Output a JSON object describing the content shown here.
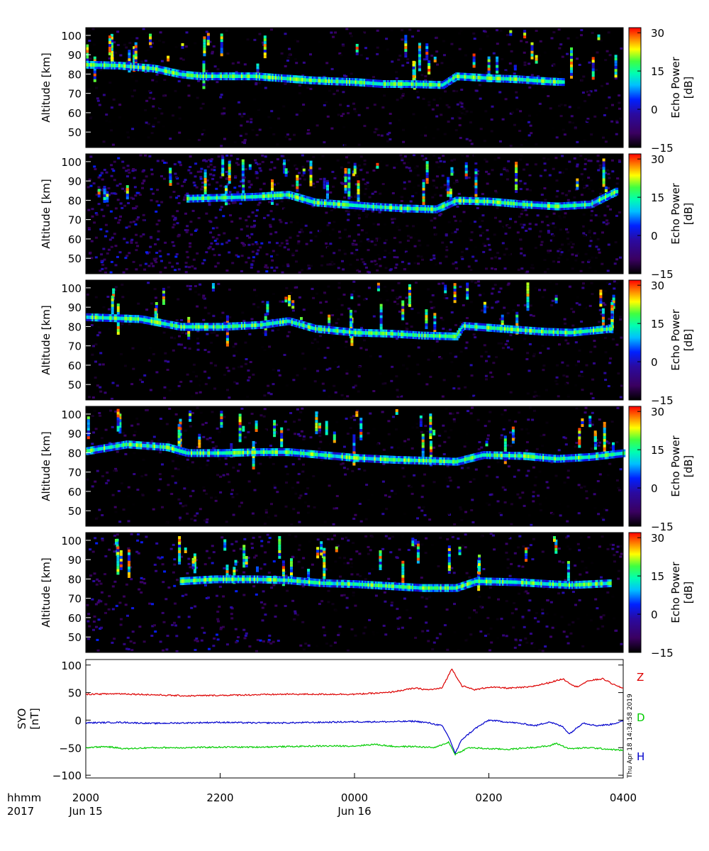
{
  "chart_data": [
    {
      "type": "heatmap",
      "panel": 1,
      "ylabel": "Altitude [km]",
      "ylim": [
        42,
        104
      ],
      "y_ticks": [
        "50",
        "60",
        "70",
        "80",
        "90",
        "100"
      ],
      "colorbar_label": "Echo Power\n[dB]",
      "colorbar_ticks": [
        "30",
        "15",
        "0",
        "−15"
      ],
      "colorbar_range": [
        -15,
        32
      ],
      "layer": [
        [
          20.0,
          85
        ],
        [
          20.5,
          84.5
        ],
        [
          21.0,
          83
        ],
        [
          21.4,
          80
        ],
        [
          21.7,
          79
        ],
        [
          22.0,
          79
        ],
        [
          22.5,
          79
        ],
        [
          22.9,
          78
        ],
        [
          23.3,
          77
        ],
        [
          23.6,
          76.5
        ],
        [
          24.0,
          76
        ],
        [
          24.4,
          75
        ],
        [
          24.8,
          75
        ],
        [
          25.3,
          74.5
        ],
        [
          25.5,
          79
        ],
        [
          26.0,
          78
        ],
        [
          26.4,
          77.5
        ],
        [
          26.8,
          76.5
        ],
        [
          27.1,
          76
        ]
      ]
    },
    {
      "type": "heatmap",
      "panel": 2,
      "ylabel": "Altitude [km]",
      "ylim": [
        42,
        104
      ],
      "y_ticks": [
        "50",
        "60",
        "70",
        "80",
        "90",
        "100"
      ],
      "colorbar_label": "Echo Power\n[dB]",
      "colorbar_ticks": [
        "30",
        "15",
        "0",
        "−15"
      ],
      "colorbar_range": [
        -15,
        32
      ],
      "layer": [
        [
          21.5,
          81
        ],
        [
          22.0,
          81.5
        ],
        [
          22.5,
          82
        ],
        [
          23.0,
          83
        ],
        [
          23.4,
          79
        ],
        [
          23.8,
          78
        ],
        [
          24.2,
          77
        ],
        [
          24.7,
          76
        ],
        [
          25.2,
          75.5
        ],
        [
          25.5,
          80
        ],
        [
          26.0,
          79.5
        ],
        [
          26.5,
          78
        ],
        [
          27.0,
          77
        ],
        [
          27.5,
          78
        ],
        [
          27.9,
          85
        ]
      ]
    },
    {
      "type": "heatmap",
      "panel": 3,
      "ylabel": "Altitude [km]",
      "ylim": [
        42,
        104
      ],
      "y_ticks": [
        "50",
        "60",
        "70",
        "80",
        "90",
        "100"
      ],
      "colorbar_label": "Echo Power\n[dB]",
      "colorbar_ticks": [
        "30",
        "15",
        "0",
        "−15"
      ],
      "colorbar_range": [
        -15,
        32
      ],
      "layer": [
        [
          20.0,
          85
        ],
        [
          20.8,
          84
        ],
        [
          21.4,
          80
        ],
        [
          22.0,
          80
        ],
        [
          22.6,
          81
        ],
        [
          23.0,
          83
        ],
        [
          23.4,
          79
        ],
        [
          24.0,
          77
        ],
        [
          24.5,
          76.5
        ],
        [
          25.0,
          75.5
        ],
        [
          25.5,
          75
        ],
        [
          25.6,
          80.5
        ],
        [
          26.2,
          79
        ],
        [
          26.8,
          77.5
        ],
        [
          27.2,
          77
        ],
        [
          27.8,
          79
        ]
      ]
    },
    {
      "type": "heatmap",
      "panel": 4,
      "ylabel": "Altitude [km]",
      "ylim": [
        42,
        104
      ],
      "y_ticks": [
        "50",
        "60",
        "70",
        "80",
        "90",
        "100"
      ],
      "colorbar_label": "Echo Power\n[dB]",
      "colorbar_ticks": [
        "30",
        "15",
        "0",
        "−15"
      ],
      "colorbar_range": [
        -15,
        32
      ],
      "layer": [
        [
          20.0,
          81
        ],
        [
          20.6,
          84.5
        ],
        [
          21.2,
          83
        ],
        [
          21.5,
          80
        ],
        [
          22.0,
          80
        ],
        [
          22.6,
          80.5
        ],
        [
          23.0,
          80.5
        ],
        [
          23.5,
          79
        ],
        [
          24.0,
          77.5
        ],
        [
          24.6,
          76.5
        ],
        [
          25.1,
          76
        ],
        [
          25.5,
          75.5
        ],
        [
          25.9,
          79
        ],
        [
          26.5,
          78.5
        ],
        [
          27.0,
          77
        ],
        [
          27.5,
          78
        ],
        [
          28.0,
          80
        ]
      ]
    },
    {
      "type": "heatmap",
      "panel": 5,
      "ylabel": "Altitude [km]",
      "ylim": [
        42,
        104
      ],
      "y_ticks": [
        "50",
        "60",
        "70",
        "80",
        "90",
        "100"
      ],
      "colorbar_label": "Echo Power\n[dB]",
      "colorbar_ticks": [
        "30",
        "15",
        "0",
        "−15"
      ],
      "colorbar_range": [
        -15,
        32
      ],
      "layer": [
        [
          21.4,
          79
        ],
        [
          21.9,
          80
        ],
        [
          22.5,
          80
        ],
        [
          23.0,
          79.5
        ],
        [
          23.5,
          78
        ],
        [
          24.0,
          77.5
        ],
        [
          24.5,
          76.5
        ],
        [
          25.0,
          75.5
        ],
        [
          25.5,
          75.5
        ],
        [
          25.8,
          79
        ],
        [
          26.4,
          78.5
        ],
        [
          26.9,
          77.5
        ],
        [
          27.2,
          77
        ],
        [
          27.8,
          78
        ]
      ]
    },
    {
      "type": "line",
      "panel": 6,
      "ylabel": "SYO\n[nT]",
      "ylim": [
        -105,
        110
      ],
      "y_ticks": [
        "100",
        "50",
        "0",
        "−50",
        "−100"
      ],
      "series": [
        {
          "name": "Z",
          "color": "#dd0000",
          "points": [
            [
              20.0,
              47
            ],
            [
              20.5,
              48
            ],
            [
              21.0,
              46
            ],
            [
              21.5,
              44
            ],
            [
              22.0,
              45
            ],
            [
              22.5,
              46
            ],
            [
              23.0,
              47
            ],
            [
              23.5,
              47
            ],
            [
              24.0,
              47
            ],
            [
              24.5,
              50
            ],
            [
              24.9,
              58
            ],
            [
              25.1,
              55
            ],
            [
              25.3,
              58
            ],
            [
              25.45,
              93
            ],
            [
              25.6,
              62
            ],
            [
              25.8,
              55
            ],
            [
              26.0,
              60
            ],
            [
              26.3,
              58
            ],
            [
              26.6,
              60
            ],
            [
              26.9,
              68
            ],
            [
              27.1,
              75
            ],
            [
              27.3,
              60
            ],
            [
              27.5,
              72
            ],
            [
              27.7,
              75
            ],
            [
              27.9,
              62
            ],
            [
              28.0,
              58
            ]
          ]
        },
        {
          "name": "D",
          "color": "#00cc00",
          "points": [
            [
              20.0,
              -50
            ],
            [
              20.3,
              -48
            ],
            [
              20.6,
              -52
            ],
            [
              21.0,
              -50
            ],
            [
              21.5,
              -50
            ],
            [
              22.0,
              -49
            ],
            [
              22.5,
              -49
            ],
            [
              23.0,
              -48
            ],
            [
              23.5,
              -47
            ],
            [
              24.0,
              -47
            ],
            [
              24.3,
              -44
            ],
            [
              24.6,
              -48
            ],
            [
              24.9,
              -48
            ],
            [
              25.2,
              -50
            ],
            [
              25.4,
              -40
            ],
            [
              25.5,
              -62
            ],
            [
              25.7,
              -50
            ],
            [
              26.0,
              -52
            ],
            [
              26.3,
              -53
            ],
            [
              26.6,
              -50
            ],
            [
              26.9,
              -47
            ],
            [
              27.0,
              -42
            ],
            [
              27.2,
              -52
            ],
            [
              27.5,
              -50
            ],
            [
              27.8,
              -53
            ],
            [
              28.0,
              -55
            ]
          ]
        },
        {
          "name": "H",
          "color": "#0000cc",
          "points": [
            [
              20.0,
              -5
            ],
            [
              20.5,
              -4
            ],
            [
              21.0,
              -6
            ],
            [
              21.5,
              -5
            ],
            [
              22.0,
              -4
            ],
            [
              22.5,
              -5
            ],
            [
              23.0,
              -5
            ],
            [
              23.5,
              -4
            ],
            [
              24.0,
              -3
            ],
            [
              24.5,
              -3
            ],
            [
              24.9,
              -2
            ],
            [
              25.1,
              -5
            ],
            [
              25.3,
              -10
            ],
            [
              25.4,
              -30
            ],
            [
              25.5,
              -60
            ],
            [
              25.6,
              -35
            ],
            [
              25.8,
              -15
            ],
            [
              26.0,
              0
            ],
            [
              26.4,
              -5
            ],
            [
              26.7,
              -10
            ],
            [
              26.9,
              -3
            ],
            [
              27.1,
              -12
            ],
            [
              27.2,
              -25
            ],
            [
              27.4,
              -5
            ],
            [
              27.6,
              -10
            ],
            [
              27.8,
              -8
            ],
            [
              28.0,
              -2
            ]
          ]
        }
      ]
    }
  ],
  "time_axis": {
    "prefix_top": "hhmm",
    "prefix_bottom": "2017",
    "xlim": [
      20.0,
      28.0
    ],
    "ticks": [
      {
        "x": 20.0,
        "label": "2000",
        "sub": "Jun 15"
      },
      {
        "x": 22.0,
        "label": "2200",
        "sub": ""
      },
      {
        "x": 24.0,
        "label": "0000",
        "sub": "Jun 16"
      },
      {
        "x": 26.0,
        "label": "0200",
        "sub": ""
      },
      {
        "x": 28.0,
        "label": "0400",
        "sub": ""
      }
    ]
  },
  "stamp": "Thu Apr 18 14:34:58 2019"
}
